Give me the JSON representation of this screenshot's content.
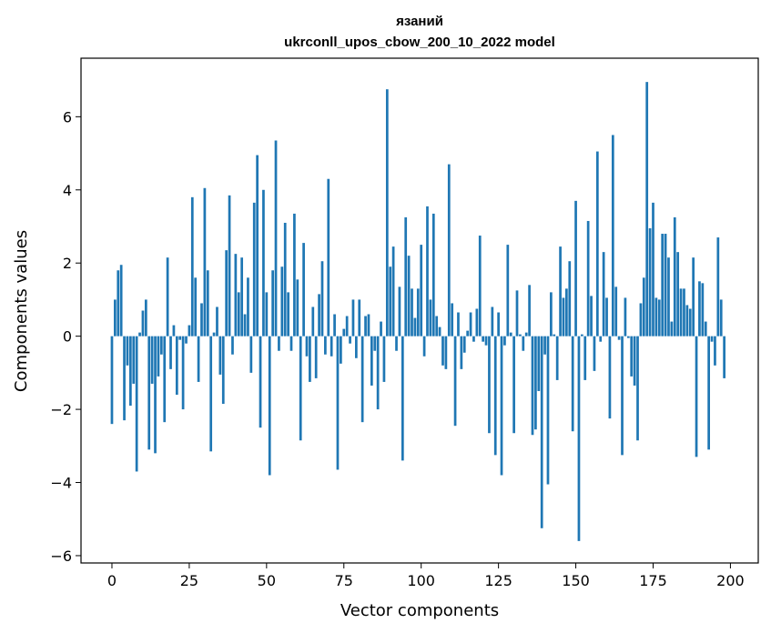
{
  "chart_data": {
    "type": "bar",
    "title": [
      "язаний",
      "ukrconll_upos_cbow_200_10_2022 model"
    ],
    "xlabel": "Vector components",
    "ylabel": "Components values",
    "xlim": [
      -10,
      209
    ],
    "ylim": [
      -6.2,
      7.6
    ],
    "xticks": [
      0,
      25,
      50,
      75,
      100,
      125,
      150,
      175,
      200
    ],
    "yticks": [
      -6,
      -4,
      -2,
      0,
      2,
      4,
      6
    ],
    "ytick_labels": [
      "−6",
      "−4",
      "−2",
      "0",
      "2",
      "4",
      "6"
    ],
    "color": "#1f77b4",
    "grid": false,
    "values": [
      -2.4,
      1.0,
      1.8,
      1.95,
      -2.3,
      -0.8,
      -1.9,
      -1.3,
      -3.7,
      0.1,
      0.7,
      1.0,
      -3.1,
      -1.3,
      -3.2,
      -1.1,
      -0.5,
      -2.35,
      2.15,
      -0.9,
      0.3,
      -1.6,
      -0.1,
      -2.0,
      -0.2,
      0.3,
      3.8,
      1.6,
      -1.25,
      0.9,
      4.05,
      1.8,
      -3.15,
      0.1,
      0.8,
      -1.05,
      -1.85,
      2.35,
      3.85,
      -0.5,
      2.25,
      1.2,
      2.15,
      0.6,
      1.6,
      -1.0,
      3.65,
      4.95,
      -2.5,
      4.0,
      1.2,
      -3.8,
      1.8,
      5.35,
      -0.4,
      1.9,
      3.1,
      1.2,
      -0.4,
      3.35,
      1.55,
      -2.85,
      2.55,
      -0.55,
      -1.25,
      0.8,
      -1.15,
      1.15,
      2.05,
      -0.5,
      4.3,
      -0.55,
      0.6,
      -3.65,
      -0.75,
      0.2,
      0.55,
      -0.2,
      1.0,
      -0.6,
      1.0,
      -2.35,
      0.55,
      0.6,
      -1.35,
      -0.4,
      -2.0,
      0.4,
      -1.25,
      6.75,
      1.9,
      2.45,
      -0.4,
      1.35,
      -3.4,
      3.25,
      2.2,
      1.3,
      0.5,
      1.3,
      2.5,
      -0.55,
      3.55,
      1.0,
      3.35,
      0.55,
      0.25,
      -0.8,
      -0.9,
      4.7,
      0.9,
      -2.45,
      0.65,
      -0.9,
      -0.45,
      0.15,
      0.65,
      -0.15,
      0.75,
      2.75,
      -0.15,
      -0.25,
      -2.65,
      0.8,
      -3.25,
      0.65,
      -3.8,
      -0.25,
      2.5,
      0.1,
      -2.65,
      1.25,
      0.05,
      -0.4,
      0.1,
      1.4,
      -2.7,
      -2.55,
      -1.5,
      -5.25,
      -0.5,
      -4.05,
      1.2,
      0.05,
      -1.2,
      2.45,
      1.05,
      1.3,
      2.05,
      -2.6,
      3.7,
      -5.6,
      0.05,
      -1.2,
      3.15,
      1.1,
      -0.95,
      5.05,
      -0.15,
      2.3,
      1.05,
      -2.25,
      5.5,
      1.35,
      -0.1,
      -3.25,
      1.05,
      -0.05,
      -1.1,
      -1.35,
      -2.85,
      0.9,
      1.6,
      6.95,
      2.95,
      3.65,
      1.05,
      1.0,
      2.8,
      2.8,
      2.15,
      0.4,
      3.25,
      2.3,
      1.3,
      1.3,
      0.85,
      0.75,
      2.15,
      -3.3,
      1.5,
      1.45,
      0.4,
      -3.1,
      -0.15,
      -0.8,
      2.7,
      1.0,
      -1.15,
      0.0
    ]
  }
}
